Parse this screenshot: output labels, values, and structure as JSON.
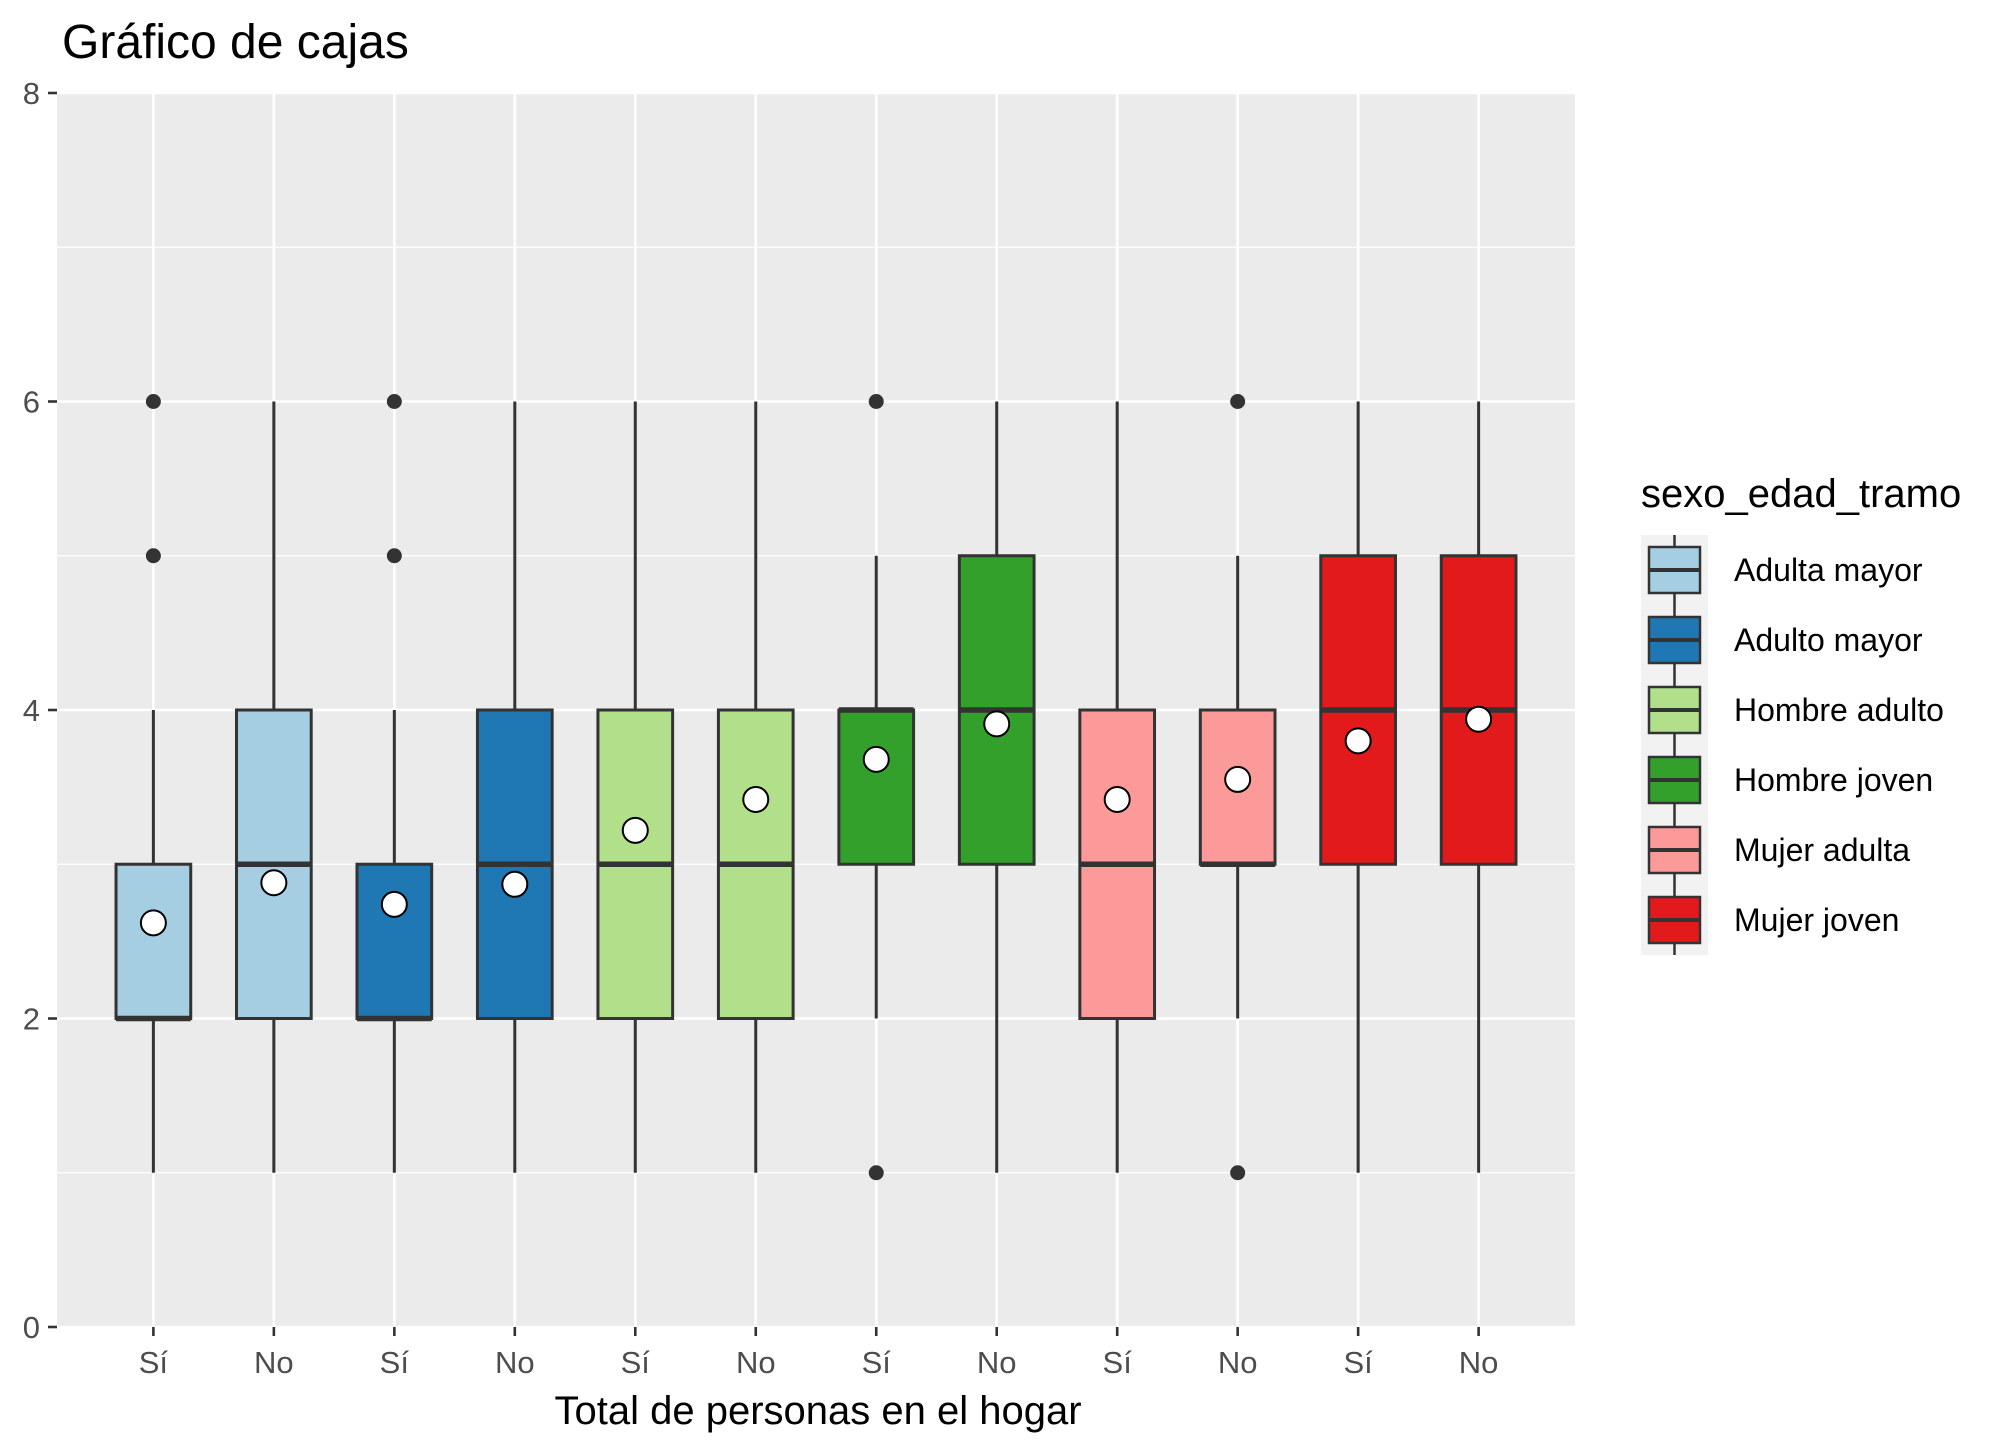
{
  "chart_data": {
    "type": "boxplot",
    "title": "Gráfico de cajas",
    "xlabel": "Total de personas en el hogar",
    "ylabel": "",
    "ylim": [
      0,
      8
    ],
    "yticks": [
      0,
      2,
      4,
      6,
      8
    ],
    "grid": true,
    "legend_position": "right",
    "legend_title": "sexo_edad_tramo",
    "categories": [
      "Sí",
      "No",
      "Sí",
      "No",
      "Sí",
      "No",
      "Sí",
      "No",
      "Sí",
      "No",
      "Sí",
      "No"
    ],
    "series": [
      {
        "name": "Adulta mayor",
        "color": "#a6cee3",
        "boxes": [
          {
            "category": "Sí",
            "min": 1,
            "q1": 2,
            "median": 2,
            "q3": 3,
            "max": 4,
            "mean": 2.62,
            "outliers": [
              5,
              6
            ]
          },
          {
            "category": "No",
            "min": 1,
            "q1": 2,
            "median": 3,
            "q3": 4,
            "max": 6,
            "mean": 2.88,
            "outliers": []
          }
        ]
      },
      {
        "name": "Adulto mayor",
        "color": "#1f78b4",
        "boxes": [
          {
            "category": "Sí",
            "min": 1,
            "q1": 2,
            "median": 2,
            "q3": 3,
            "max": 4,
            "mean": 2.74,
            "outliers": [
              5,
              6
            ]
          },
          {
            "category": "No",
            "min": 1,
            "q1": 2,
            "median": 3,
            "q3": 4,
            "max": 6,
            "mean": 2.87,
            "outliers": []
          }
        ]
      },
      {
        "name": "Hombre adulto",
        "color": "#b2df8a",
        "boxes": [
          {
            "category": "Sí",
            "min": 1,
            "q1": 2,
            "median": 3,
            "q3": 4,
            "max": 6,
            "mean": 3.22,
            "outliers": []
          },
          {
            "category": "No",
            "min": 1,
            "q1": 2,
            "median": 3,
            "q3": 4,
            "max": 6,
            "mean": 3.42,
            "outliers": []
          }
        ]
      },
      {
        "name": "Hombre joven",
        "color": "#33a02c",
        "boxes": [
          {
            "category": "Sí",
            "min": 2,
            "q1": 3,
            "median": 4,
            "q3": 4,
            "max": 5,
            "mean": 3.68,
            "outliers": [
              1,
              6
            ]
          },
          {
            "category": "No",
            "min": 1,
            "q1": 3,
            "median": 4,
            "q3": 5,
            "max": 6,
            "mean": 3.91,
            "outliers": []
          }
        ]
      },
      {
        "name": "Mujer adulta",
        "color": "#fb9a99",
        "boxes": [
          {
            "category": "Sí",
            "min": 1,
            "q1": 2,
            "median": 3,
            "q3": 4,
            "max": 6,
            "mean": 3.42,
            "outliers": []
          },
          {
            "category": "No",
            "min": 2,
            "q1": 3,
            "median": 3,
            "q3": 4,
            "max": 5,
            "mean": 3.55,
            "outliers": [
              1,
              6
            ]
          }
        ]
      },
      {
        "name": "Mujer joven",
        "color": "#e31a1c",
        "boxes": [
          {
            "category": "Sí",
            "min": 1,
            "q1": 3,
            "median": 4,
            "q3": 5,
            "max": 6,
            "mean": 3.8,
            "outliers": []
          },
          {
            "category": "No",
            "min": 1,
            "q1": 3,
            "median": 4,
            "q3": 5,
            "max": 6,
            "mean": 3.94,
            "outliers": []
          }
        ]
      }
    ]
  }
}
